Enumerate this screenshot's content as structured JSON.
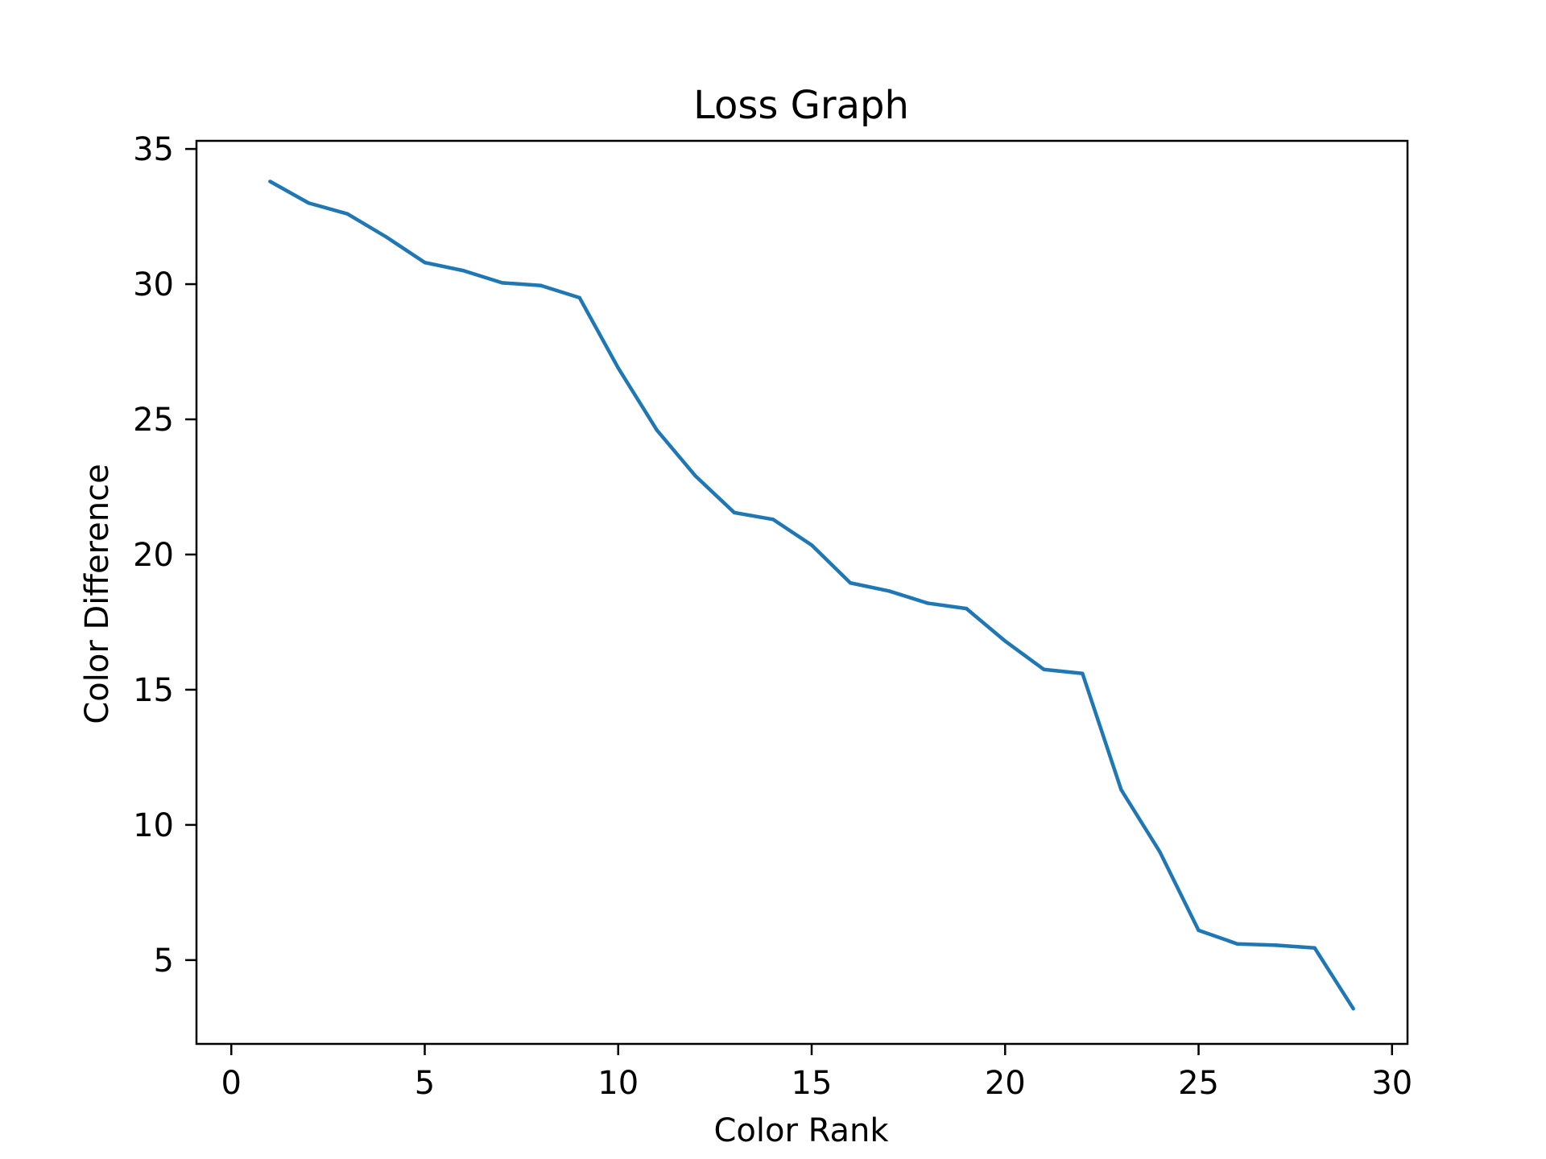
{
  "chart_data": {
    "type": "line",
    "title": "Loss Graph",
    "xlabel": "Color Rank",
    "ylabel": "Color Difference",
    "xlim": [
      -0.9,
      30.4
    ],
    "ylim": [
      1.9,
      35.3
    ],
    "xticks": [
      0,
      5,
      10,
      15,
      20,
      25,
      30
    ],
    "yticks": [
      5,
      10,
      15,
      20,
      25,
      30,
      35
    ],
    "grid": false,
    "legend": "none",
    "series": [
      {
        "color": "#1f77b4",
        "x": [
          1,
          2,
          3,
          4,
          5,
          6,
          7,
          8,
          9,
          10,
          11,
          12,
          13,
          14,
          15,
          16,
          17,
          18,
          19,
          20,
          21,
          22,
          23,
          24,
          25,
          26,
          27,
          28,
          29
        ],
        "values": [
          33.8,
          33.0,
          32.6,
          31.75,
          30.8,
          30.5,
          30.05,
          29.95,
          29.5,
          26.9,
          24.6,
          22.9,
          21.55,
          21.3,
          20.35,
          18.95,
          18.65,
          18.2,
          18.0,
          16.8,
          15.75,
          15.6,
          11.3,
          9.0,
          6.1,
          5.6,
          5.55,
          5.45,
          3.2
        ]
      }
    ]
  }
}
